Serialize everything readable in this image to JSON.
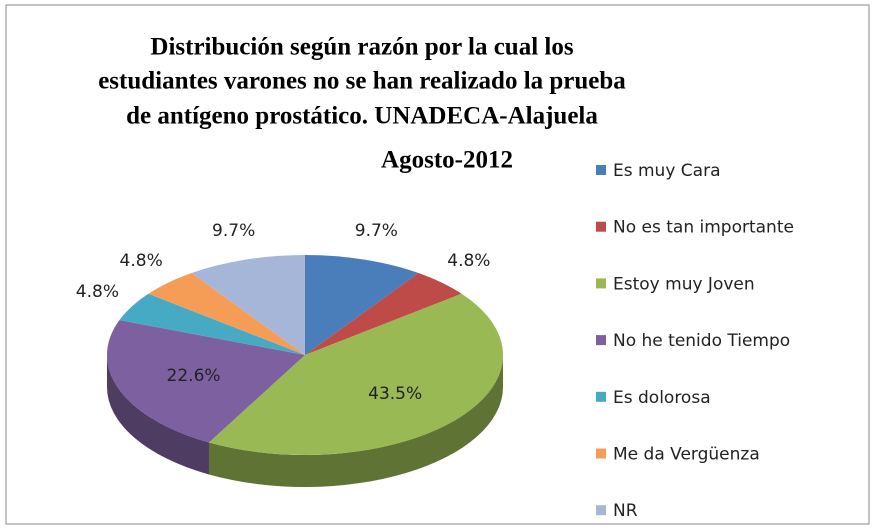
{
  "chart_data": {
    "type": "pie",
    "title": [
      "Distribución  según  razón  por la cual los",
      "estudiantes varones no se han realizado la prueba",
      "de antígeno prostático.    UNADECA-Alajuela",
      "Agosto-2012"
    ],
    "categories": [
      "Es muy Cara",
      "No es tan importante",
      "Estoy muy Joven",
      "No he tenido Tiempo",
      "Es dolorosa",
      "Me da Vergüenza",
      "NR"
    ],
    "values": [
      9.7,
      4.8,
      43.5,
      22.6,
      4.8,
      4.8,
      9.7
    ],
    "value_labels": [
      "9.7%",
      "4.8%",
      "43.5%",
      "22.6%",
      "4.8%",
      "4.8%",
      "9.7%"
    ],
    "colors": [
      "#4a7ebb",
      "#be4b48",
      "#98b954",
      "#7d60a0",
      "#46aac5",
      "#f59d56",
      "#a5b6d8"
    ],
    "legend": "right"
  }
}
